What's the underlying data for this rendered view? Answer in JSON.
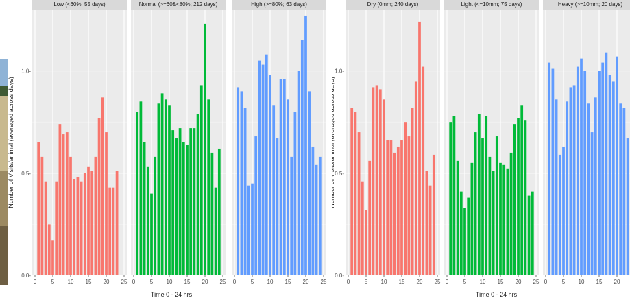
{
  "chart_data": [
    {
      "type": "bar",
      "facet_by": "humidity",
      "xlabel": "Time 0 - 24 hrs",
      "ylabel": "Number of Visits/animal (averaged across days)",
      "xlim": [
        0,
        25
      ],
      "ylim": [
        0,
        1.3
      ],
      "x_ticks": [
        0,
        5,
        10,
        15,
        20,
        25
      ],
      "y_ticks": [
        0,
        0.5,
        1.0
      ],
      "y_tick_labels": [
        "0.0-",
        "0.5-",
        "1.0-"
      ],
      "grid": true,
      "x": [
        1,
        2,
        3,
        4,
        5,
        6,
        7,
        8,
        9,
        10,
        11,
        12,
        13,
        14,
        15,
        16,
        17,
        18,
        19,
        20,
        21,
        22,
        23,
        24
      ],
      "panels": [
        {
          "label": "Low (<60%; 55 days)",
          "color": "#F8766D",
          "values": [
            0.65,
            0.58,
            0.46,
            0.25,
            0.17,
            0.46,
            0.74,
            0.69,
            0.7,
            0.58,
            0.47,
            0.48,
            0.46,
            0.5,
            0.53,
            0.51,
            0.58,
            0.77,
            0.87,
            0.7,
            0.43,
            0.43,
            0.51,
            null
          ]
        },
        {
          "label": "Normal (>=60&<80%; 212 days)",
          "color": "#00BA38",
          "values": [
            0.8,
            0.85,
            0.65,
            0.53,
            0.4,
            0.58,
            0.84,
            0.89,
            0.86,
            0.83,
            0.71,
            0.67,
            0.72,
            0.65,
            0.64,
            0.72,
            0.72,
            0.79,
            0.93,
            1.23,
            0.86,
            0.6,
            0.43,
            0.62
          ]
        },
        {
          "label": "High (>=80%; 63 days)",
          "color": "#619CFF",
          "values": [
            0.92,
            0.9,
            0.82,
            0.44,
            0.45,
            0.68,
            1.05,
            1.03,
            1.08,
            0.98,
            0.83,
            0.67,
            0.96,
            0.96,
            0.86,
            0.58,
            0.8,
            1.0,
            1.15,
            1.27,
            0.9,
            0.63,
            0.54,
            0.58
          ]
        }
      ]
    },
    {
      "type": "bar",
      "facet_by": "rainfall",
      "xlabel": "Time 0 - 24 hrs",
      "ylabel": "Number of Visits/animal (averaged across days)",
      "xlim": [
        0,
        25
      ],
      "ylim": [
        0,
        1.3
      ],
      "x_ticks": [
        0,
        5,
        10,
        15,
        20,
        25
      ],
      "y_ticks": [
        0,
        0.5,
        1.0
      ],
      "y_tick_labels": [
        "0.0-",
        "0.5-",
        "1.0-"
      ],
      "grid": true,
      "x": [
        1,
        2,
        3,
        4,
        5,
        6,
        7,
        8,
        9,
        10,
        11,
        12,
        13,
        14,
        15,
        16,
        17,
        18,
        19,
        20,
        21,
        22,
        23,
        24
      ],
      "panels": [
        {
          "label": "Dry (0mm; 240 days)",
          "color": "#F8766D",
          "values": [
            0.82,
            0.8,
            0.7,
            0.46,
            0.32,
            0.56,
            0.92,
            0.93,
            0.91,
            0.86,
            0.66,
            0.66,
            0.6,
            0.63,
            0.66,
            0.75,
            0.68,
            0.82,
            0.95,
            1.24,
            1.02,
            0.51,
            0.44,
            0.59
          ]
        },
        {
          "label": "Light (<=10mm; 75 days)",
          "color": "#00BA38",
          "values": [
            0.75,
            0.78,
            0.56,
            0.41,
            0.33,
            0.38,
            0.55,
            0.7,
            0.79,
            0.67,
            0.78,
            0.58,
            0.51,
            0.68,
            0.55,
            0.54,
            0.52,
            0.6,
            0.74,
            0.77,
            0.83,
            0.76,
            0.39,
            0.41
          ]
        },
        {
          "label": "Heavy (>=10mm; 20 days)",
          "color": "#619CFF",
          "values": [
            1.04,
            1.01,
            0.86,
            0.59,
            0.63,
            0.85,
            0.92,
            0.93,
            1.02,
            1.06,
            1.0,
            0.84,
            0.7,
            0.87,
            1.0,
            1.04,
            1.09,
            0.98,
            0.95,
            1.07,
            0.84,
            0.82,
            0.67,
            null
          ]
        }
      ]
    }
  ]
}
